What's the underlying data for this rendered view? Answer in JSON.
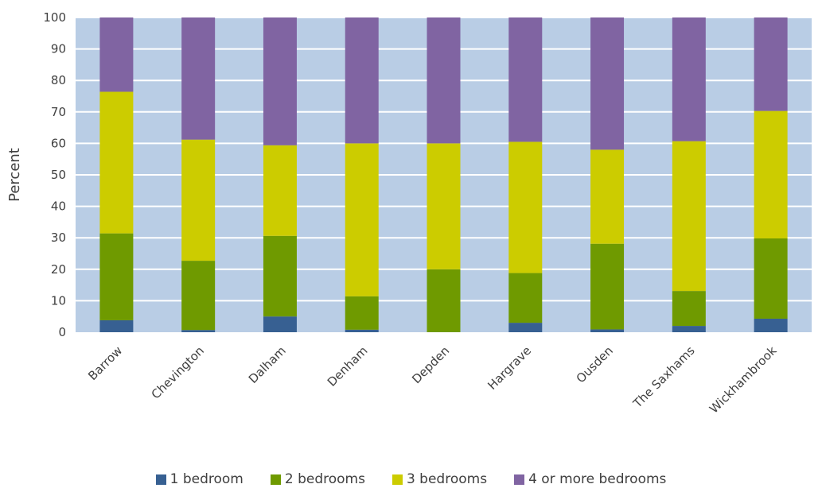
{
  "chart_data": {
    "type": "bar",
    "stacked": true,
    "title": "",
    "xlabel": "",
    "ylabel": "Percent",
    "ylim": [
      0,
      100
    ],
    "yticks": [
      0,
      10,
      20,
      30,
      40,
      50,
      60,
      70,
      80,
      90,
      100
    ],
    "grid": true,
    "legend_position": "bottom",
    "plot_background": "#b9cde5",
    "categories": [
      "Barrow",
      "Chevington",
      "Dalham",
      "Denham",
      "Depden",
      "Hargrave",
      "Ousden",
      "The Saxhams",
      "Wickhambrook"
    ],
    "series": [
      {
        "name": "1 bedroom",
        "color": "#376092",
        "values": [
          3.8,
          0.7,
          5.0,
          0.8,
          0.0,
          3.0,
          0.9,
          2.0,
          4.3
        ]
      },
      {
        "name": "2 bedrooms",
        "color": "#6f9a00",
        "values": [
          27.6,
          22.0,
          25.6,
          10.6,
          20.0,
          15.8,
          27.2,
          11.1,
          25.5
        ]
      },
      {
        "name": "3 bedrooms",
        "color": "#cccc00",
        "values": [
          45.0,
          38.5,
          28.8,
          48.6,
          40.0,
          41.7,
          29.9,
          47.6,
          40.5
        ]
      },
      {
        "name": "4 or more bedrooms",
        "color": "#8064a2",
        "values": [
          23.6,
          38.8,
          40.6,
          40.0,
          40.0,
          39.5,
          42.0,
          39.3,
          29.7
        ]
      }
    ]
  }
}
